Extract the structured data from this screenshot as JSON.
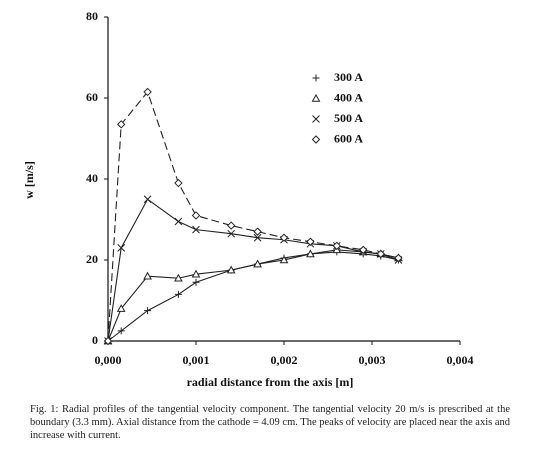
{
  "chart_data": {
    "type": "line",
    "xlabel": "radial distance from the axis [m]",
    "ylabel": "w [m/s]",
    "xlim": [
      0,
      0.004
    ],
    "ylim": [
      0,
      80
    ],
    "xticks": [
      {
        "value": 0,
        "label": "0,000"
      },
      {
        "value": 0.001,
        "label": "0,001"
      },
      {
        "value": 0.002,
        "label": "0,002"
      },
      {
        "value": 0.003,
        "label": "0,003"
      },
      {
        "value": 0.004,
        "label": "0,004"
      }
    ],
    "yticks": [
      0,
      20,
      40,
      60,
      80
    ],
    "x": [
      0,
      0.00015,
      0.00045,
      0.0008,
      0.001,
      0.0014,
      0.0017,
      0.002,
      0.0023,
      0.0026,
      0.0029,
      0.0031,
      0.0033
    ],
    "series": [
      {
        "name": "300 A",
        "color": "#222222",
        "marker": "plus",
        "linestyle": "solid",
        "values": [
          0,
          2.5,
          7.5,
          11.5,
          14.5,
          17.5,
          19,
          20.5,
          21.5,
          22,
          21.5,
          21,
          20
        ]
      },
      {
        "name": "400 A",
        "color": "#222222",
        "marker": "triangle",
        "linestyle": "solid",
        "values": [
          0,
          8,
          16,
          15.5,
          16.5,
          17.5,
          19,
          20,
          21.5,
          22.5,
          22,
          21.5,
          20.5
        ]
      },
      {
        "name": "500 A",
        "color": "#222222",
        "marker": "x",
        "linestyle": "solid",
        "values": [
          0,
          23,
          35,
          29.5,
          27.5,
          26.5,
          25.5,
          25,
          24,
          23.5,
          22,
          21.5,
          20
        ]
      },
      {
        "name": "600 A",
        "color": "#222222",
        "marker": "diamond",
        "linestyle": "dashed",
        "values": [
          0,
          53.5,
          61.5,
          39,
          31,
          28.5,
          27,
          25.5,
          24.5,
          23.5,
          22.5,
          21.5,
          20.5
        ]
      }
    ],
    "caption": "Fig. 1: Radial profiles of the tangential velocity component. The tangential velocity 20 m/s is prescribed at the boundary (3.3 mm). Axial distance from the cathode = 4.09 cm. The peaks of velocity are placed near the axis and increase with current."
  }
}
